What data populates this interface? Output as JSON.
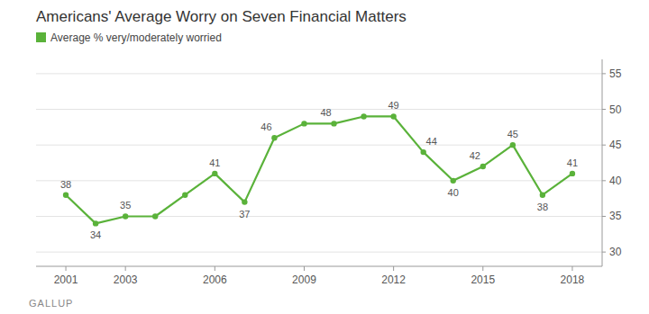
{
  "chart_data": {
    "type": "line",
    "title": "Americans' Average Worry on Seven Financial Matters",
    "x": [
      2001,
      2002,
      2003,
      2004,
      2005,
      2006,
      2007,
      2008,
      2009,
      2010,
      2011,
      2012,
      2013,
      2014,
      2015,
      2016,
      2017,
      2018
    ],
    "series": [
      {
        "name": "Average % very/moderately worried",
        "color": "#5ab23a",
        "marker": "circle",
        "values": [
          38,
          34,
          35,
          35,
          38,
          41,
          37,
          46,
          48,
          48,
          49,
          49,
          44,
          40,
          42,
          45,
          38,
          41
        ],
        "value_labels": [
          "38",
          "34",
          "35",
          null,
          null,
          "41",
          "37",
          "46",
          null,
          "48",
          null,
          "49",
          "44",
          "40",
          "42",
          "45",
          "38",
          "41"
        ]
      }
    ],
    "xlim": [
      2000,
      2019
    ],
    "xticks": [
      2001,
      2003,
      2006,
      2009,
      2012,
      2015,
      2018
    ],
    "ylim": [
      28,
      57
    ],
    "yticks": [
      30,
      35,
      40,
      45,
      50,
      55
    ],
    "grid": true,
    "legend": "top-left",
    "data_labels": true,
    "annotations": [
      {
        "text": "GALLUP"
      }
    ]
  }
}
